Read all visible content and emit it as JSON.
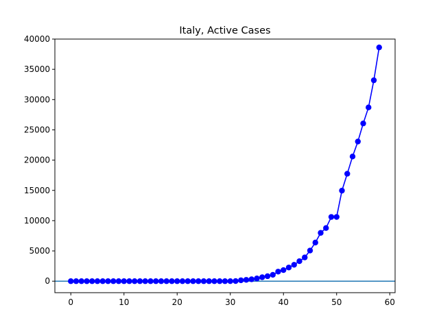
{
  "chart_data": {
    "type": "line",
    "title": "Italy, Active Cases",
    "xlabel": "",
    "ylabel": "",
    "xlim": [
      -3,
      61
    ],
    "ylim": [
      -1900,
      40000
    ],
    "xticks": [
      0,
      10,
      20,
      30,
      40,
      50,
      60
    ],
    "yticks": [
      0,
      5000,
      10000,
      15000,
      20000,
      25000,
      30000,
      35000,
      40000
    ],
    "grid": false,
    "legend": "none",
    "reference_line": {
      "y": 0,
      "color": "#1f77b4"
    },
    "series": [
      {
        "color": "#0000ff",
        "marker": "circle",
        "x": [
          0,
          1,
          2,
          3,
          4,
          5,
          6,
          7,
          8,
          9,
          10,
          11,
          12,
          13,
          14,
          15,
          16,
          17,
          18,
          19,
          20,
          21,
          22,
          23,
          24,
          25,
          26,
          27,
          28,
          29,
          30,
          31,
          32,
          33,
          34,
          35,
          36,
          37,
          38,
          39,
          40,
          41,
          42,
          43,
          44,
          45,
          46,
          47,
          48,
          49,
          50,
          51,
          52,
          53,
          54,
          55,
          56,
          57,
          58
        ],
        "y": [
          0,
          0,
          0,
          0,
          0,
          0,
          0,
          0,
          0,
          0,
          0,
          0,
          0,
          0,
          0,
          0,
          0,
          0,
          0,
          0,
          0,
          0,
          0,
          0,
          0,
          0,
          0,
          0,
          0,
          0,
          3,
          17,
          150,
          220,
          310,
          450,
          650,
          820,
          1050,
          1580,
          1830,
          2260,
          2710,
          3300,
          3920,
          5060,
          6380,
          7980,
          8780,
          10610,
          10610,
          14960,
          17750,
          20600,
          23070,
          26060,
          28710,
          33190,
          38620
        ]
      }
    ]
  }
}
